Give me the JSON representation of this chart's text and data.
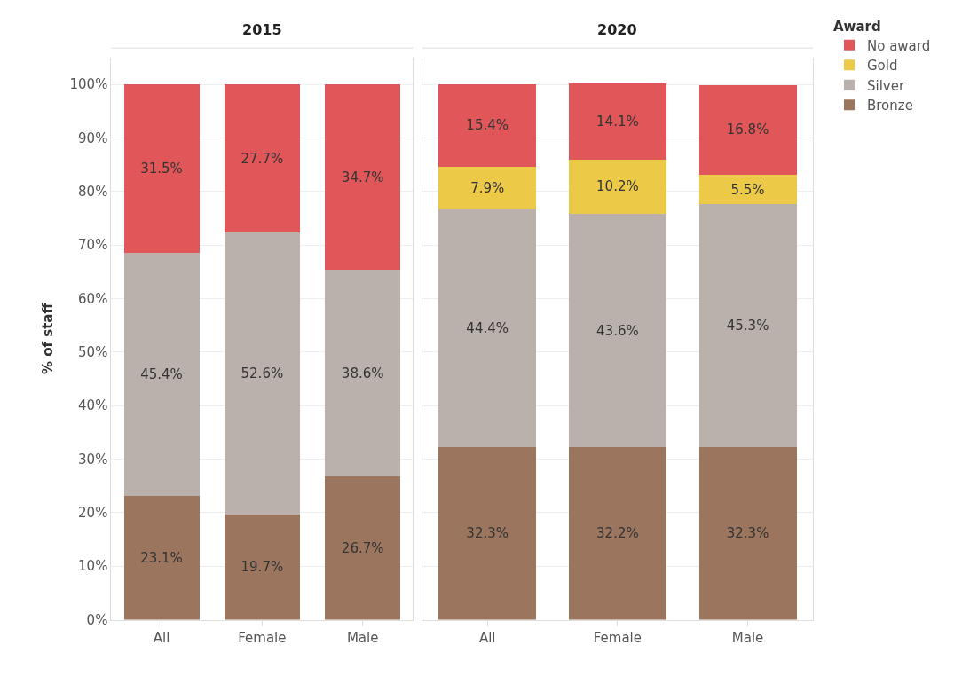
{
  "chart_data": [
    {
      "type": "bar",
      "title": "2015",
      "ylabel": "% of staff",
      "legend": "right",
      "stacked": true,
      "categories": [
        "All",
        "Female",
        "Male"
      ],
      "ylim": [
        0,
        105
      ],
      "yticks": [
        {
          "value": 0,
          "label": "0%"
        },
        {
          "value": 10,
          "label": "10%"
        },
        {
          "value": 20,
          "label": "20%"
        },
        {
          "value": 30,
          "label": "30%"
        },
        {
          "value": 40,
          "label": "40%"
        },
        {
          "value": 50,
          "label": "50%"
        },
        {
          "value": 60,
          "label": "60%"
        },
        {
          "value": 70,
          "label": "70%"
        },
        {
          "value": 80,
          "label": "80%"
        },
        {
          "value": 90,
          "label": "90%"
        },
        {
          "value": 100,
          "label": "100%"
        }
      ],
      "grid": "y",
      "series": [
        {
          "name": "Bronze",
          "color": "#9c755f",
          "values": [
            23.1,
            19.7,
            26.7
          ],
          "value_labels": [
            "23.1%",
            "19.7%",
            "26.7%"
          ]
        },
        {
          "name": "Silver",
          "color": "#bab0ac",
          "values": [
            45.4,
            52.6,
            38.6
          ],
          "value_labels": [
            "45.4%",
            "52.6%",
            "38.6%"
          ]
        },
        {
          "name": "No award",
          "color": "#e15759",
          "values": [
            31.5,
            27.7,
            34.7
          ],
          "value_labels": [
            "31.5%",
            "27.7%",
            "34.7%"
          ]
        }
      ]
    },
    {
      "type": "bar",
      "title": "2020",
      "legend_title": "Award",
      "legend": "right",
      "stacked": true,
      "categories": [
        "All",
        "Female",
        "Male"
      ],
      "tick_labels": "x",
      "ylim": [
        0,
        105
      ],
      "yticks": [
        0,
        10,
        20,
        30,
        40,
        50,
        60,
        70,
        80,
        90,
        100
      ],
      "grid": "y",
      "series": [
        {
          "name": "Bronze",
          "color": "#9c755f",
          "values": [
            32.3,
            32.2,
            32.3
          ],
          "value_labels": [
            "32.3%",
            "32.2%",
            "32.3%"
          ]
        },
        {
          "name": "Silver",
          "color": "#bab0ac",
          "values": [
            44.4,
            43.6,
            45.3
          ],
          "value_labels": [
            "44.4%",
            "43.6%",
            "45.3%"
          ]
        },
        {
          "name": "Gold",
          "color": "#edc948",
          "values": [
            7.9,
            10.2,
            5.5
          ],
          "value_labels": [
            "7.9%",
            "10.2%",
            "5.5%"
          ]
        },
        {
          "name": "No award",
          "color": "#e15759",
          "values": [
            15.4,
            14.1,
            16.8
          ],
          "value_labels": [
            "15.4%",
            "14.1%",
            "16.8%"
          ]
        }
      ]
    }
  ]
}
